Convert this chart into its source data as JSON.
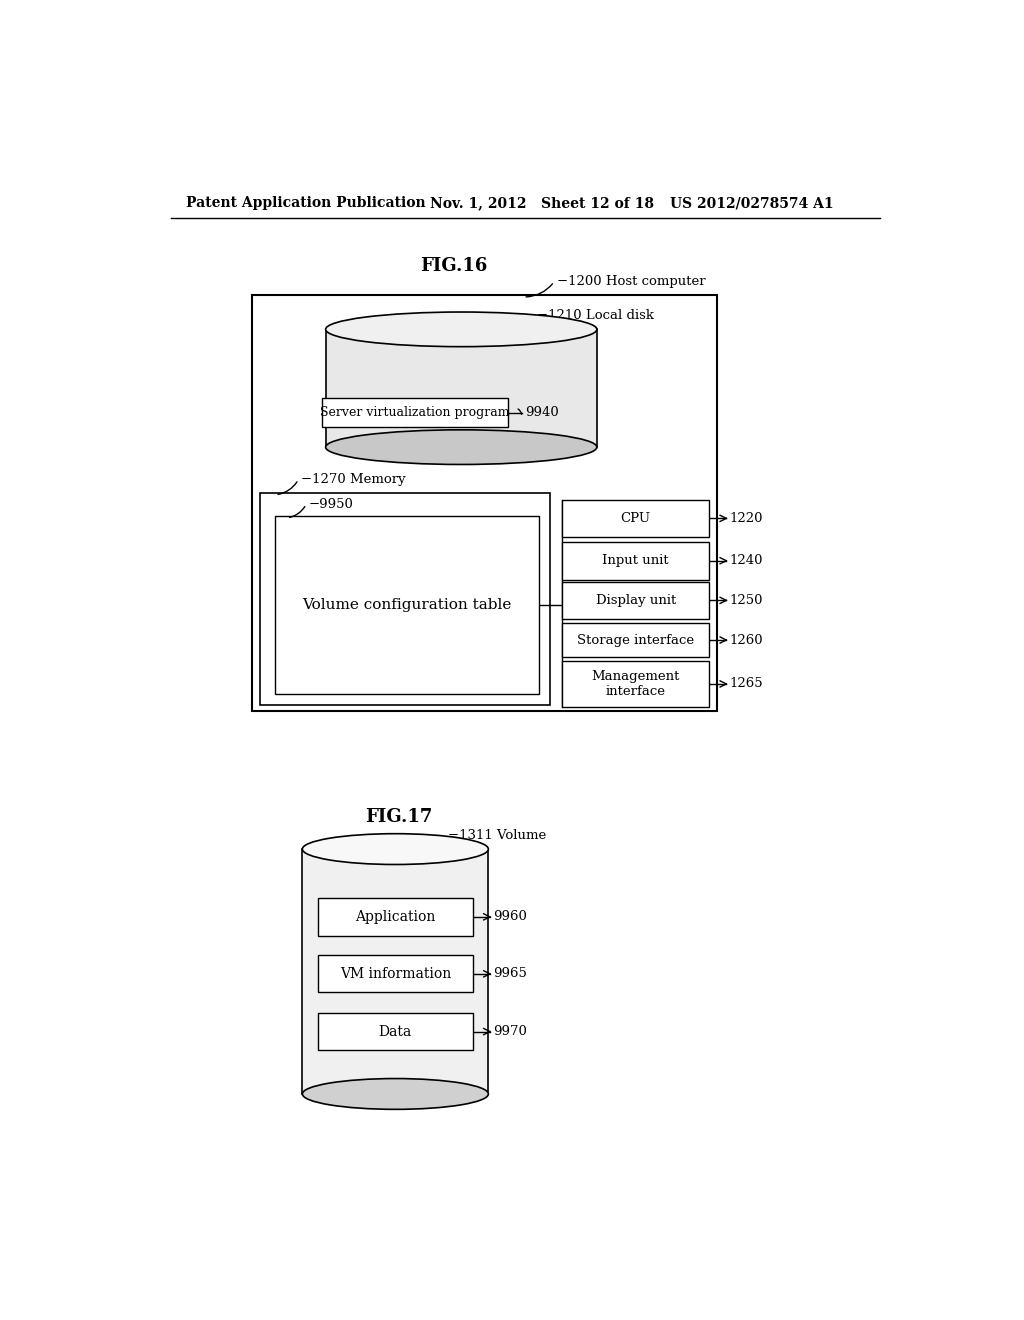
{
  "background_color": "#ffffff",
  "header_left": "Patent Application Publication",
  "header_mid": "Nov. 1, 2012   Sheet 12 of 18",
  "header_right": "US 2012/0278574 A1",
  "fig16_title": "FIG.16",
  "fig17_title": "FIG.17",
  "fig16": {
    "host_computer_label": "−1200 Host computer",
    "local_disk_label": "−1210 Local disk",
    "svp_label": "Server virtualization program",
    "svp_ref": "9940",
    "memory_label": "−1270 Memory",
    "vol_config_label": "Volume configuration table",
    "vol_config_ref": "−9950",
    "right_boxes": [
      {
        "label": "CPU",
        "ref": "1220"
      },
      {
        "label": "Input unit",
        "ref": "1240"
      },
      {
        "label": "Display unit",
        "ref": "1250"
      },
      {
        "label": "Storage interface",
        "ref": "1260"
      },
      {
        "label": "Management\ninterface",
        "ref": "1265"
      }
    ]
  },
  "fig17": {
    "volume_label": "−1311 Volume",
    "boxes": [
      {
        "label": "Application",
        "ref": "9960"
      },
      {
        "label": "VM information",
        "ref": "9965"
      },
      {
        "label": "Data",
        "ref": "9970"
      }
    ]
  }
}
